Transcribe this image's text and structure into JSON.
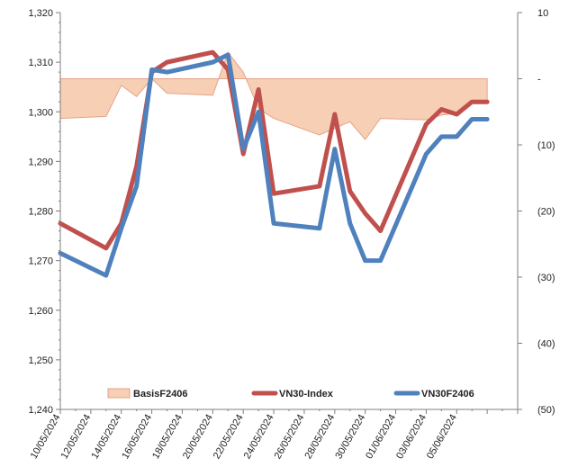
{
  "chart_data": {
    "type": "line",
    "x": [
      "10/05/2024",
      "13/05/2024",
      "14/05/2024",
      "15/05/2024",
      "16/05/2024",
      "17/05/2024",
      "20/05/2024",
      "21/05/2024",
      "22/05/2024",
      "23/05/2024",
      "24/05/2024",
      "27/05/2024",
      "28/05/2024",
      "29/05/2024",
      "30/05/2024",
      "31/05/2024",
      "03/06/2024",
      "04/06/2024",
      "05/06/2024",
      "06/06/2024",
      "07/06/2024"
    ],
    "x_tick_labels": [
      "10/05/2024",
      "12/05/2024",
      "14/05/2024",
      "16/05/2024",
      "18/05/2024",
      "20/05/2024",
      "22/05/2024",
      "24/05/2024",
      "26/05/2024",
      "28/05/2024",
      "30/05/2024",
      "01/06/2024",
      "03/06/2024",
      "05/06/2024"
    ],
    "y_left": {
      "min": 1240,
      "max": 1320,
      "step": 10,
      "tick_labels": [
        "1,240",
        "1,250",
        "1,260",
        "1,270",
        "1,280",
        "1,290",
        "1,300",
        "1,310",
        "1,320"
      ]
    },
    "y_right": {
      "min": -50,
      "max": 10,
      "step": 10,
      "tick_labels": [
        "(50)",
        "(40)",
        "(30)",
        "(20)",
        "(10)",
        "-",
        "10"
      ]
    },
    "series": [
      {
        "name": "BasisF2406",
        "type": "area",
        "axis": "right",
        "color": "#f7cfb4",
        "stroke": "#e6a389",
        "points": [
          [
            "2024-05-10",
            -6.0
          ],
          [
            "2024-05-13",
            -5.7
          ],
          [
            "2024-05-14",
            -1.0
          ],
          [
            "2024-05-15",
            -2.7
          ],
          [
            "2024-05-16",
            0.0
          ],
          [
            "2024-05-17",
            -2.2
          ],
          [
            "2024-05-20",
            -2.5
          ],
          [
            "2024-05-21",
            4.0
          ],
          [
            "2024-05-22",
            1.0
          ],
          [
            "2024-05-23",
            -4.5
          ],
          [
            "2024-05-24",
            -6.0
          ],
          [
            "2024-05-27",
            -8.5
          ],
          [
            "2024-05-28",
            -7.5
          ],
          [
            "2024-05-29",
            -6.5
          ],
          [
            "2024-05-30",
            -9.2
          ],
          [
            "2024-05-31",
            -6.0
          ],
          [
            "2024-06-03",
            -6.2
          ],
          [
            "2024-06-04",
            -5.5
          ],
          [
            "2024-06-05",
            -5.2
          ],
          [
            "2024-06-06",
            -3.5
          ],
          [
            "2024-06-07",
            -3.5
          ]
        ]
      },
      {
        "name": "VN30-Index",
        "type": "line",
        "axis": "left",
        "color": "#c0504d",
        "points": [
          [
            "2024-05-10",
            1277.5
          ],
          [
            "2024-05-13",
            1272.5
          ],
          [
            "2024-05-14",
            1277.5
          ],
          [
            "2024-05-15",
            1289.0
          ],
          [
            "2024-05-16",
            1308.0
          ],
          [
            "2024-05-17",
            1310.0
          ],
          [
            "2024-05-20",
            1312.0
          ],
          [
            "2024-05-21",
            1308.5
          ],
          [
            "2024-05-22",
            1291.5
          ],
          [
            "2024-05-23",
            1304.5
          ],
          [
            "2024-05-24",
            1283.5
          ],
          [
            "2024-05-27",
            1285.0
          ],
          [
            "2024-05-28",
            1299.5
          ],
          [
            "2024-05-29",
            1284.0
          ],
          [
            "2024-05-30",
            1279.5
          ],
          [
            "2024-05-31",
            1276.0
          ],
          [
            "2024-06-03",
            1297.5
          ],
          [
            "2024-06-04",
            1300.5
          ],
          [
            "2024-06-05",
            1299.5
          ],
          [
            "2024-06-06",
            1302.0
          ],
          [
            "2024-06-07",
            1302.0
          ]
        ]
      },
      {
        "name": "VN30F2406",
        "type": "line",
        "axis": "left",
        "color": "#4f81bd",
        "points": [
          [
            "2024-05-10",
            1271.5
          ],
          [
            "2024-05-13",
            1267.0
          ],
          [
            "2024-05-14",
            1276.5
          ],
          [
            "2024-05-15",
            1285.0
          ],
          [
            "2024-05-16",
            1308.5
          ],
          [
            "2024-05-17",
            1308.0
          ],
          [
            "2024-05-20",
            1310.0
          ],
          [
            "2024-05-21",
            1311.5
          ],
          [
            "2024-05-22",
            1292.5
          ],
          [
            "2024-05-23",
            1300.0
          ],
          [
            "2024-05-24",
            1277.5
          ],
          [
            "2024-05-27",
            1276.5
          ],
          [
            "2024-05-28",
            1292.5
          ],
          [
            "2024-05-29",
            1277.5
          ],
          [
            "2024-05-30",
            1270.0
          ],
          [
            "2024-05-31",
            1270.0
          ],
          [
            "2024-06-03",
            1291.5
          ],
          [
            "2024-06-04",
            1295.0
          ],
          [
            "2024-06-05",
            1295.0
          ],
          [
            "2024-06-06",
            1298.5
          ],
          [
            "2024-06-07",
            1298.5
          ]
        ]
      }
    ],
    "legend": {
      "placement": "bottom-inside",
      "entries": [
        "BasisF2406",
        "VN30-Index",
        "VN30F2406"
      ]
    },
    "grid": false
  }
}
